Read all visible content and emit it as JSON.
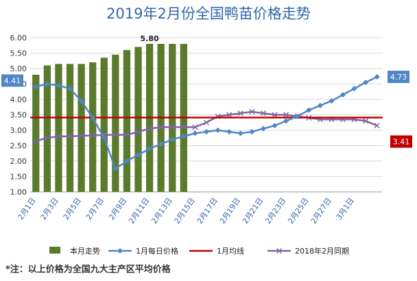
{
  "chart_data": {
    "type": "bar+line",
    "title": "2019年2月份全国鸭苗价格走势",
    "footnote": "*注：以上价格为全国九大主产区平均价格",
    "ylim": [
      1.0,
      6.0
    ],
    "y_ticks": [
      "1.00",
      "1.50",
      "2.00",
      "2.50",
      "3.00",
      "3.50",
      "4.00",
      "4.50",
      "5.00",
      "5.50",
      "6.00"
    ],
    "x_ticks": [
      "2月1日",
      "2月3日",
      "2月5日",
      "2月7日",
      "2月9日",
      "2月11日",
      "2月13日",
      "2月15日",
      "2月17日",
      "2月19日",
      "2月21日",
      "2月23日",
      "2月25日",
      "2月27日",
      "3月1日"
    ],
    "categories": [
      "2月1日",
      "2月2日",
      "2月3日",
      "2月4日",
      "2月5日",
      "2月6日",
      "2月7日",
      "2月8日",
      "2月9日",
      "2月10日",
      "2月11日",
      "2月12日",
      "2月13日",
      "2月14日",
      "2月15日",
      "2月16日",
      "2月17日",
      "2月18日",
      "2月19日",
      "2月20日",
      "2月21日",
      "2月22日",
      "2月23日",
      "2月24日",
      "2月25日",
      "2月26日",
      "2月27日",
      "2月28日",
      "3月1日",
      "3月2日",
      "3月3日"
    ],
    "series": [
      {
        "name": "本月走势",
        "kind": "bar",
        "color": "#5a7a2c",
        "values": [
          4.8,
          5.1,
          5.15,
          5.15,
          5.15,
          5.2,
          5.35,
          5.45,
          5.6,
          5.7,
          5.8,
          5.8,
          5.8,
          5.8,
          null,
          null,
          null,
          null,
          null,
          null,
          null,
          null,
          null,
          null,
          null,
          null,
          null,
          null,
          null,
          null,
          null
        ]
      },
      {
        "name": "1月每日价格",
        "kind": "line-marker",
        "color": "#4f86c6",
        "values": [
          4.41,
          4.5,
          4.45,
          4.35,
          3.95,
          3.4,
          2.75,
          1.75,
          2.0,
          2.2,
          2.4,
          2.55,
          2.7,
          2.8,
          2.9,
          2.95,
          3.0,
          2.95,
          2.9,
          2.95,
          3.05,
          3.15,
          3.3,
          3.45,
          3.65,
          3.8,
          3.95,
          4.15,
          4.35,
          4.55,
          4.73
        ]
      },
      {
        "name": "1月均线",
        "kind": "hline",
        "color": "#c00000",
        "value": 3.41
      },
      {
        "name": "2018年2月同期",
        "kind": "line-x",
        "color": "#8064a2",
        "values": [
          2.65,
          2.75,
          2.8,
          2.8,
          2.82,
          2.83,
          2.85,
          2.85,
          2.85,
          2.95,
          3.05,
          3.1,
          3.1,
          3.1,
          3.1,
          3.25,
          3.45,
          3.5,
          3.55,
          3.6,
          3.55,
          3.5,
          3.5,
          3.45,
          3.4,
          3.35,
          3.35,
          3.35,
          3.35,
          3.3,
          3.15
        ]
      }
    ],
    "data_labels": {
      "bar_max": "5.80",
      "line_start": "4.41",
      "line_end": "4.73",
      "hline": "3.41"
    },
    "legend_position": "bottom",
    "grid": true
  }
}
